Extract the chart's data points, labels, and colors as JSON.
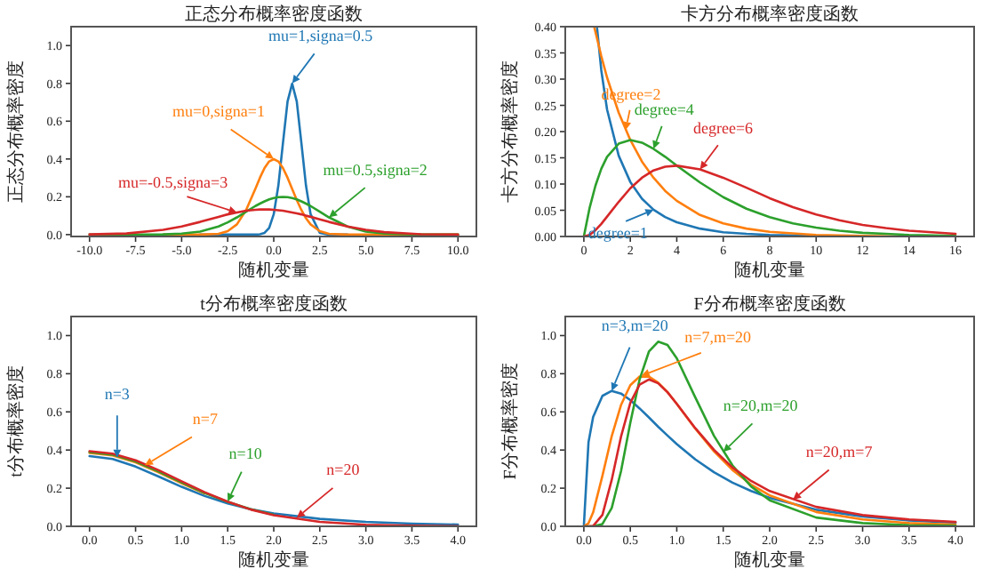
{
  "chart_data": [
    {
      "type": "line",
      "title": "正态分布概率密度函数",
      "xlabel": "随机变量",
      "ylabel": "正态分布概率密度",
      "x": [
        -10,
        -8,
        -6,
        -5,
        -4,
        -3,
        -2.5,
        -2,
        -1.5,
        -1,
        -0.75,
        -0.5,
        -0.25,
        0,
        0.25,
        0.5,
        0.75,
        1,
        1.25,
        1.5,
        1.75,
        2,
        2.5,
        3,
        4,
        5,
        6,
        8,
        10
      ],
      "series": [
        {
          "color": "#1f77b4",
          "values": [
            null,
            null,
            null,
            null,
            0,
            0,
            0,
            0,
            0,
            0,
            0.002,
            0.009,
            0.035,
            0.108,
            0.259,
            0.484,
            0.704,
            0.798,
            0.704,
            0.484,
            0.259,
            0.108,
            0.009,
            0,
            0,
            null,
            null,
            null,
            null
          ]
        },
        {
          "color": "#ff7f0e",
          "values": [
            null,
            null,
            0,
            0,
            0,
            0.004,
            0.018,
            0.054,
            0.13,
            0.242,
            0.301,
            0.352,
            0.387,
            0.399,
            0.387,
            0.352,
            0.301,
            0.242,
            0.183,
            0.13,
            0.086,
            0.054,
            0.018,
            0.004,
            0,
            0,
            0,
            0,
            0
          ]
        },
        {
          "color": "#2ca02c",
          "values": [
            0,
            0,
            0.001,
            0.005,
            0.016,
            0.043,
            0.065,
            0.091,
            0.121,
            0.151,
            0.164,
            0.176,
            0.186,
            0.193,
            0.198,
            0.199,
            0.198,
            0.193,
            0.186,
            0.176,
            0.164,
            0.151,
            0.121,
            0.091,
            0.043,
            0.016,
            0.005,
            0,
            0
          ]
        },
        {
          "color": "#d62728",
          "values": [
            0.001,
            0.006,
            0.025,
            0.043,
            0.067,
            0.094,
            0.107,
            0.117,
            0.126,
            0.131,
            0.133,
            0.133,
            0.133,
            0.131,
            0.129,
            0.126,
            0.122,
            0.117,
            0.112,
            0.107,
            0.1,
            0.094,
            0.081,
            0.067,
            0.043,
            0.025,
            0.013,
            0.002,
            0
          ]
        }
      ],
      "xlim": [
        -11,
        11
      ],
      "ylim": [
        -0.01,
        1.1
      ],
      "xticks": [
        {
          "value": -10,
          "label": "-10.0"
        },
        {
          "value": -7.5,
          "label": "-7.5"
        },
        {
          "value": -5,
          "label": "-5.0"
        },
        {
          "value": -2.5,
          "label": "-2.5"
        },
        {
          "value": 0,
          "label": "0.0"
        },
        {
          "value": 2.5,
          "label": "2.5"
        },
        {
          "value": 5,
          "label": "5.0"
        },
        {
          "value": 7.5,
          "label": "7.5"
        },
        {
          "value": 10,
          "label": "10.0"
        }
      ],
      "yticks": [
        {
          "value": 0,
          "label": "0.0"
        },
        {
          "value": 0.2,
          "label": "0.2"
        },
        {
          "value": 0.4,
          "label": "0.4"
        },
        {
          "value": 0.6,
          "label": "0.6"
        },
        {
          "value": 0.8,
          "label": "0.8"
        },
        {
          "value": 1,
          "label": "1.0"
        }
      ],
      "annotations": [
        {
          "text": "mu=1,signa=0.5",
          "x": 1,
          "y": 0.8
        },
        {
          "text": "mu=0,signa=1",
          "x": 0,
          "y": 0.4
        },
        {
          "text": "mu=0.5,signa=2",
          "x": 3,
          "y": 0.091
        },
        {
          "text": "mu=-0.5,signa=3",
          "x": -2,
          "y": 0.117
        }
      ]
    },
    {
      "type": "line",
      "title": "卡方分布概率密度函数",
      "xlabel": "随机变量",
      "ylabel": "卡方分布概率密度",
      "series": [
        {
          "color": "#1f77b4",
          "x": [
            0.57,
            0.75,
            1,
            1.5,
            2,
            2.5,
            3,
            3.5,
            4,
            5,
            6,
            7,
            8,
            9,
            10
          ],
          "values": [
            0.397,
            0.317,
            0.242,
            0.154,
            0.104,
            0.072,
            0.051,
            0.037,
            0.027,
            0.015,
            0.008,
            0.005,
            0.003,
            0.002,
            0.001
          ]
        },
        {
          "color": "#ff7f0e",
          "x": [
            0.45,
            0.75,
            1,
            1.5,
            2,
            2.5,
            3,
            3.5,
            4,
            5,
            6,
            7,
            8,
            9,
            10,
            11,
            12,
            14,
            16
          ],
          "values": [
            0.399,
            0.344,
            0.303,
            0.236,
            0.184,
            0.143,
            0.112,
            0.087,
            0.068,
            0.041,
            0.025,
            0.015,
            0.009,
            0.006,
            0.003,
            0.002,
            0.001,
            0,
            0
          ]
        },
        {
          "color": "#2ca02c",
          "x": [
            0,
            0.25,
            0.5,
            0.75,
            1,
            1.5,
            2,
            2.5,
            3,
            3.5,
            4,
            5,
            6,
            7,
            8,
            9,
            10,
            11,
            12,
            13,
            14,
            15,
            16
          ],
          "values": [
            0,
            0.055,
            0.097,
            0.129,
            0.152,
            0.177,
            0.184,
            0.179,
            0.167,
            0.152,
            0.135,
            0.103,
            0.075,
            0.053,
            0.037,
            0.025,
            0.017,
            0.011,
            0.007,
            0.005,
            0.003,
            0.002,
            0.001
          ]
        },
        {
          "color": "#d62728",
          "x": [
            0,
            0.25,
            0.5,
            0.75,
            1,
            1.5,
            2,
            2.5,
            3,
            3.5,
            4,
            5,
            6,
            7,
            8,
            9,
            10,
            11,
            12,
            13,
            14,
            15,
            16
          ],
          "values": [
            0,
            0.003,
            0.012,
            0.024,
            0.038,
            0.066,
            0.092,
            0.112,
            0.126,
            0.133,
            0.135,
            0.128,
            0.112,
            0.093,
            0.073,
            0.056,
            0.042,
            0.031,
            0.022,
            0.016,
            0.011,
            0.008,
            0.005
          ]
        }
      ],
      "xlim": [
        -0.8,
        16.8
      ],
      "ylim": [
        0,
        0.4
      ],
      "xticks": [
        0,
        2,
        4,
        6,
        8,
        10,
        12,
        14,
        16
      ],
      "yticks": [
        {
          "value": 0,
          "label": "0.00"
        },
        {
          "value": 0.05,
          "label": "0.05"
        },
        {
          "value": 0.1,
          "label": "0.10"
        },
        {
          "value": 0.15,
          "label": "0.15"
        },
        {
          "value": 0.2,
          "label": "0.20"
        },
        {
          "value": 0.25,
          "label": "0.25"
        },
        {
          "value": 0.3,
          "label": "0.30"
        },
        {
          "value": 0.35,
          "label": "0.35"
        },
        {
          "value": 0.4,
          "label": "0.40"
        }
      ],
      "annotations": [
        {
          "text": "degree=1",
          "x": 3,
          "y": 0.051
        },
        {
          "text": "degree=2",
          "x": 1.8,
          "y": 0.203
        },
        {
          "text": "degree=4",
          "x": 3,
          "y": 0.167
        },
        {
          "text": "degree=6",
          "x": 5,
          "y": 0.128
        }
      ]
    },
    {
      "type": "line",
      "title": "t分布概率密度函数",
      "xlabel": "随机变量",
      "ylabel": "t分布概率密度",
      "x": [
        0,
        0.25,
        0.5,
        0.75,
        1,
        1.25,
        1.5,
        1.75,
        2,
        2.5,
        3,
        3.5,
        4
      ],
      "series": [
        {
          "color": "#1f77b4",
          "values": [
            0.368,
            0.353,
            0.313,
            0.261,
            0.207,
            0.159,
            0.12,
            0.09,
            0.068,
            0.039,
            0.023,
            0.014,
            0.009
          ]
        },
        {
          "color": "#ff7f0e",
          "values": [
            0.385,
            0.372,
            0.335,
            0.283,
            0.226,
            0.172,
            null,
            null,
            null,
            null,
            null,
            null,
            null
          ]
        },
        {
          "color": "#2ca02c",
          "values": [
            0.389,
            0.376,
            0.34,
            0.288,
            0.23,
            0.175,
            0.128,
            0.09,
            0.061,
            null,
            null,
            null,
            null
          ]
        },
        {
          "color": "#d62728",
          "values": [
            0.394,
            0.381,
            0.346,
            0.294,
            0.236,
            0.179,
            0.129,
            0.088,
            0.058,
            0.023,
            0.008,
            0.003,
            0.001
          ]
        }
      ],
      "xlim": [
        -0.2,
        4.2
      ],
      "ylim": [
        0,
        1.1
      ],
      "xticks": [
        {
          "value": 0,
          "label": "0.0"
        },
        {
          "value": 0.5,
          "label": "0.5"
        },
        {
          "value": 1,
          "label": "1.0"
        },
        {
          "value": 1.5,
          "label": "1.5"
        },
        {
          "value": 2,
          "label": "2.0"
        },
        {
          "value": 2.5,
          "label": "2.5"
        },
        {
          "value": 3,
          "label": "3.0"
        },
        {
          "value": 3.5,
          "label": "3.5"
        },
        {
          "value": 4,
          "label": "4.0"
        }
      ],
      "yticks": [
        {
          "value": 0,
          "label": "0.0"
        },
        {
          "value": 0.2,
          "label": "0.2"
        },
        {
          "value": 0.4,
          "label": "0.4"
        },
        {
          "value": 0.6,
          "label": "0.6"
        },
        {
          "value": 0.8,
          "label": "0.8"
        },
        {
          "value": 1,
          "label": "1.0"
        }
      ],
      "annotations": [
        {
          "text": "n=3",
          "x": 0.3,
          "y": 0.36
        },
        {
          "text": "n=7",
          "x": 0.6,
          "y": 0.32
        },
        {
          "text": "n=10",
          "x": 1.5,
          "y": 0.13
        },
        {
          "text": "n=20",
          "x": 2.25,
          "y": 0.045
        }
      ]
    },
    {
      "type": "line",
      "title": "F分布概率密度函数",
      "xlabel": "随机变量",
      "ylabel": "F分布概率密度",
      "x": [
        0,
        0.05,
        0.1,
        0.2,
        0.3,
        0.4,
        0.5,
        0.6,
        0.7,
        0.8,
        0.9,
        1,
        1.2,
        1.4,
        1.6,
        1.8,
        2,
        2.5,
        3,
        3.5,
        4
      ],
      "series": [
        {
          "color": "#1f77b4",
          "values": [
            0,
            0.441,
            0.573,
            0.684,
            0.71,
            0.696,
            0.662,
            0.618,
            0.571,
            0.522,
            0.476,
            0.431,
            0.351,
            0.284,
            0.229,
            0.185,
            0.149,
            0.087,
            0.052,
            0.031,
            0.019
          ]
        },
        {
          "color": "#ff7f0e",
          "values": [
            0,
            0.016,
            0.073,
            0.265,
            0.473,
            0.636,
            0.74,
            0.785,
            0.785,
            0.753,
            0.704,
            0.642,
            0.512,
            0.393,
            0.295,
            0.219,
            0.162,
            0.075,
            0.036,
            0.017,
            0.009
          ]
        },
        {
          "color": "#2ca02c",
          "values": [
            0,
            0,
            0,
            0.012,
            0.096,
            0.289,
            0.543,
            0.77,
            0.916,
            0.968,
            0.951,
            0.881,
            0.675,
            0.475,
            0.319,
            0.209,
            0.136,
            0.046,
            0.017,
            0.006,
            0.003
          ]
        },
        {
          "color": "#d62728",
          "values": [
            0,
            0,
            0.002,
            0.06,
            0.244,
            0.47,
            0.647,
            0.743,
            0.77,
            0.75,
            0.703,
            0.642,
            0.514,
            0.401,
            0.308,
            0.238,
            0.185,
            0.102,
            0.059,
            0.036,
            0.023
          ]
        }
      ],
      "xlim": [
        -0.2,
        4.2
      ],
      "ylim": [
        0,
        1.1
      ],
      "xticks": [
        {
          "value": 0,
          "label": "0.0"
        },
        {
          "value": 0.5,
          "label": "0.5"
        },
        {
          "value": 1,
          "label": "1.0"
        },
        {
          "value": 1.5,
          "label": "1.5"
        },
        {
          "value": 2,
          "label": "2.0"
        },
        {
          "value": 2.5,
          "label": "2.5"
        },
        {
          "value": 3,
          "label": "3.0"
        },
        {
          "value": 3.5,
          "label": "3.5"
        },
        {
          "value": 4,
          "label": "4.0"
        }
      ],
      "yticks": [
        {
          "value": 0,
          "label": "0.0"
        },
        {
          "value": 0.2,
          "label": "0.2"
        },
        {
          "value": 0.4,
          "label": "0.4"
        },
        {
          "value": 0.6,
          "label": "0.6"
        },
        {
          "value": 0.8,
          "label": "0.8"
        },
        {
          "value": 1,
          "label": "1.0"
        }
      ],
      "annotations": [
        {
          "text": "n=3,m=20",
          "x": 0.3,
          "y": 0.71
        },
        {
          "text": "n=7,m=20",
          "x": 0.62,
          "y": 0.79
        },
        {
          "text": "n=20,m=20",
          "x": 1.5,
          "y": 0.39
        },
        {
          "text": "n=20,m=7",
          "x": 2.25,
          "y": 0.14
        }
      ]
    }
  ]
}
